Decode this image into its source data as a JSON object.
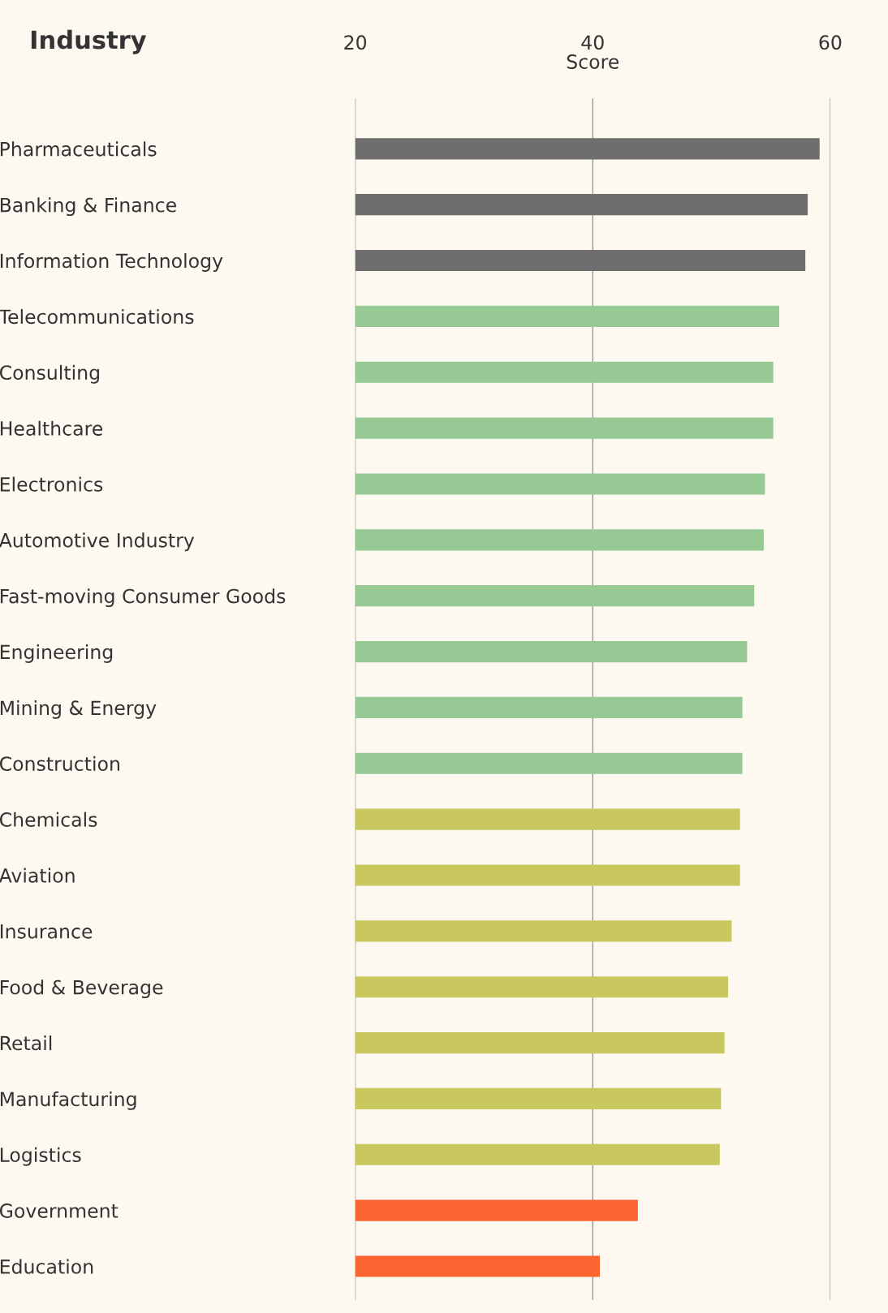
{
  "chart_data": {
    "type": "bar",
    "orientation": "horizontal",
    "ylabel": "Industry",
    "xlabel": "Score",
    "categories": [
      "Pharmaceuticals",
      "Banking & Finance",
      "Information Technology",
      "Telecommunications",
      "Consulting",
      "Healthcare",
      "Electronics",
      "Automotive Industry",
      "Fast-moving Consumer Goods",
      "Engineering",
      "Mining & Energy",
      "Construction",
      "Chemicals",
      "Aviation",
      "Insurance",
      "Food & Beverage",
      "Retail",
      "Manufacturing",
      "Logistics",
      "Government",
      "Education"
    ],
    "values": [
      59.1,
      58.1,
      57.9,
      55.7,
      55.2,
      55.2,
      54.5,
      54.4,
      53.6,
      53.0,
      52.6,
      52.6,
      52.4,
      52.4,
      51.7,
      51.4,
      51.1,
      50.8,
      50.7,
      43.8,
      40.6
    ],
    "colors": [
      "#6e6e6e",
      "#6e6e6e",
      "#6e6e6e",
      "#97c995",
      "#97c995",
      "#97c995",
      "#97c995",
      "#97c995",
      "#97c995",
      "#97c995",
      "#97c995",
      "#97c995",
      "#c8c85f",
      "#c8c85f",
      "#c8c85f",
      "#c8c85f",
      "#c8c85f",
      "#c8c85f",
      "#c8c85f",
      "#fc6432",
      "#fc6432"
    ],
    "xlim": [
      20,
      60
    ],
    "xticks": [
      20,
      40,
      60
    ],
    "grid": "x"
  }
}
